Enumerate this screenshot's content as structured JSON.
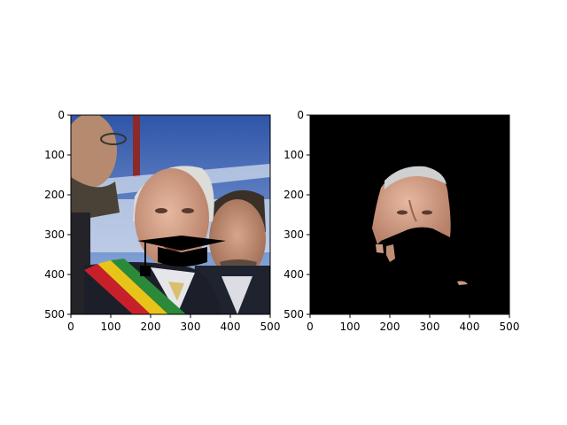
{
  "figure": {
    "background": "#ffffff",
    "axes_color": "#000000"
  },
  "panels": [
    {
      "name": "photo-with-cap",
      "content": "photo of men outdoors with a black graduation cap overlay",
      "xticks": [
        "0",
        "100",
        "200",
        "300",
        "400",
        "500"
      ],
      "yticks": [
        "0",
        "100",
        "200",
        "300",
        "400",
        "500"
      ],
      "xlim": [
        0,
        500
      ],
      "ylim": [
        500,
        0
      ]
    },
    {
      "name": "face-mask",
      "content": "black background with segmented face region",
      "xticks": [
        "0",
        "100",
        "200",
        "300",
        "400",
        "500"
      ],
      "yticks": [
        "0",
        "100",
        "200",
        "300",
        "400",
        "500"
      ],
      "xlim": [
        0,
        500
      ],
      "ylim": [
        500,
        0
      ],
      "background": "#000000"
    }
  ],
  "colors": {
    "sky": "#3a62b8",
    "sky_light": "#8fb0e0",
    "cap": "#000000",
    "skin": "#c89a82",
    "hair": "#d8d8d4",
    "sash_red": "#c8202a",
    "sash_yellow": "#e8c41a",
    "sash_green": "#2a8a3a",
    "suit": "#1e2230",
    "shirt": "#e6e6ea"
  }
}
